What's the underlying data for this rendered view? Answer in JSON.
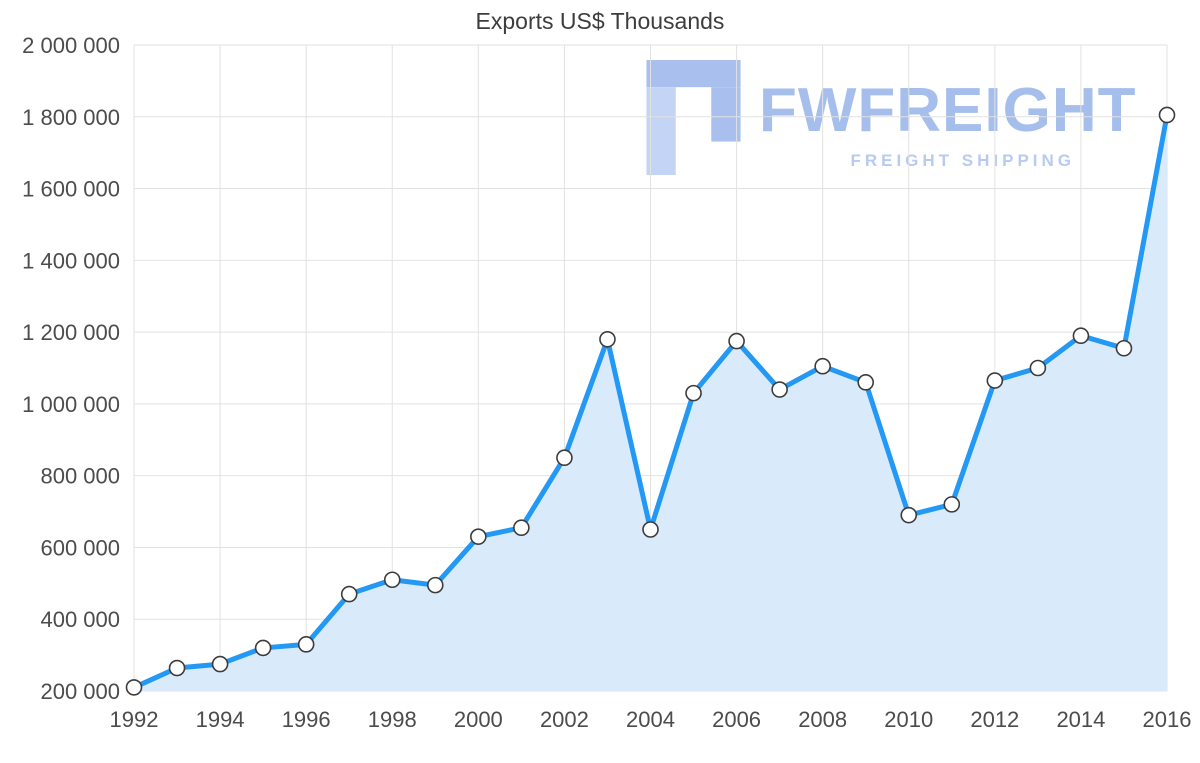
{
  "page": {
    "title": "Exports US$ Thousands"
  },
  "watermark": {
    "brand": "FWFREIGHT",
    "tagline": "FREIGHT SHIPPING",
    "brand_color": "#a5beec",
    "tagline_color": "#b7cbf2",
    "icon_color_main": "#a9c0ee",
    "icon_color_light": "#c3d4f4"
  },
  "chart_data": {
    "type": "line",
    "title": "Exports US$ Thousands",
    "x": [
      1992,
      1993,
      1994,
      1995,
      1996,
      1997,
      1998,
      1999,
      2000,
      2001,
      2002,
      2003,
      2004,
      2005,
      2006,
      2007,
      2008,
      2009,
      2010,
      2011,
      2012,
      2013,
      2014,
      2015,
      2016
    ],
    "values": [
      210000,
      264000,
      275000,
      320000,
      330000,
      470000,
      510000,
      495000,
      630000,
      655000,
      850000,
      1180000,
      650000,
      1030000,
      1175000,
      1040000,
      1105000,
      1060000,
      690000,
      720000,
      1065000,
      1100000,
      1190000,
      1155000,
      1805000
    ],
    "ylim": [
      200000,
      2000000
    ],
    "grid": true,
    "legend": "none",
    "y_ticks": [
      {
        "value": 2000000,
        "label": "2 000 000"
      },
      {
        "value": 1800000,
        "label": "1 800 000"
      },
      {
        "value": 1600000,
        "label": "1 600 000"
      },
      {
        "value": 1400000,
        "label": "1 400 000"
      },
      {
        "value": 1200000,
        "label": "1 200 000"
      },
      {
        "value": 1000000,
        "label": "1 000 000"
      },
      {
        "value": 800000,
        "label": "800 000"
      },
      {
        "value": 600000,
        "label": "600 000"
      },
      {
        "value": 400000,
        "label": "400 000"
      },
      {
        "value": 200000,
        "label": "200 000"
      }
    ],
    "x_ticks": [
      {
        "value": 1992,
        "label": "1992"
      },
      {
        "value": 1994,
        "label": "1994"
      },
      {
        "value": 1996,
        "label": "1996"
      },
      {
        "value": 1998,
        "label": "1998"
      },
      {
        "value": 2000,
        "label": "2000"
      },
      {
        "value": 2002,
        "label": "2002"
      },
      {
        "value": 2004,
        "label": "2004"
      },
      {
        "value": 2006,
        "label": "2006"
      },
      {
        "value": 2008,
        "label": "2008"
      },
      {
        "value": 2010,
        "label": "2010"
      },
      {
        "value": 2012,
        "label": "2012"
      },
      {
        "value": 2014,
        "label": "2014"
      },
      {
        "value": 2016,
        "label": "2016"
      }
    ],
    "styles": {
      "line_color": "#2398f4",
      "area_color": "#d9ebfb",
      "marker_fill": "#ffffff",
      "marker_stroke": "#3c3c3c",
      "grid_color": "#e2e2e2",
      "axis_text_color": "#4c4c4c",
      "title_color": "#3d3d3d"
    }
  }
}
